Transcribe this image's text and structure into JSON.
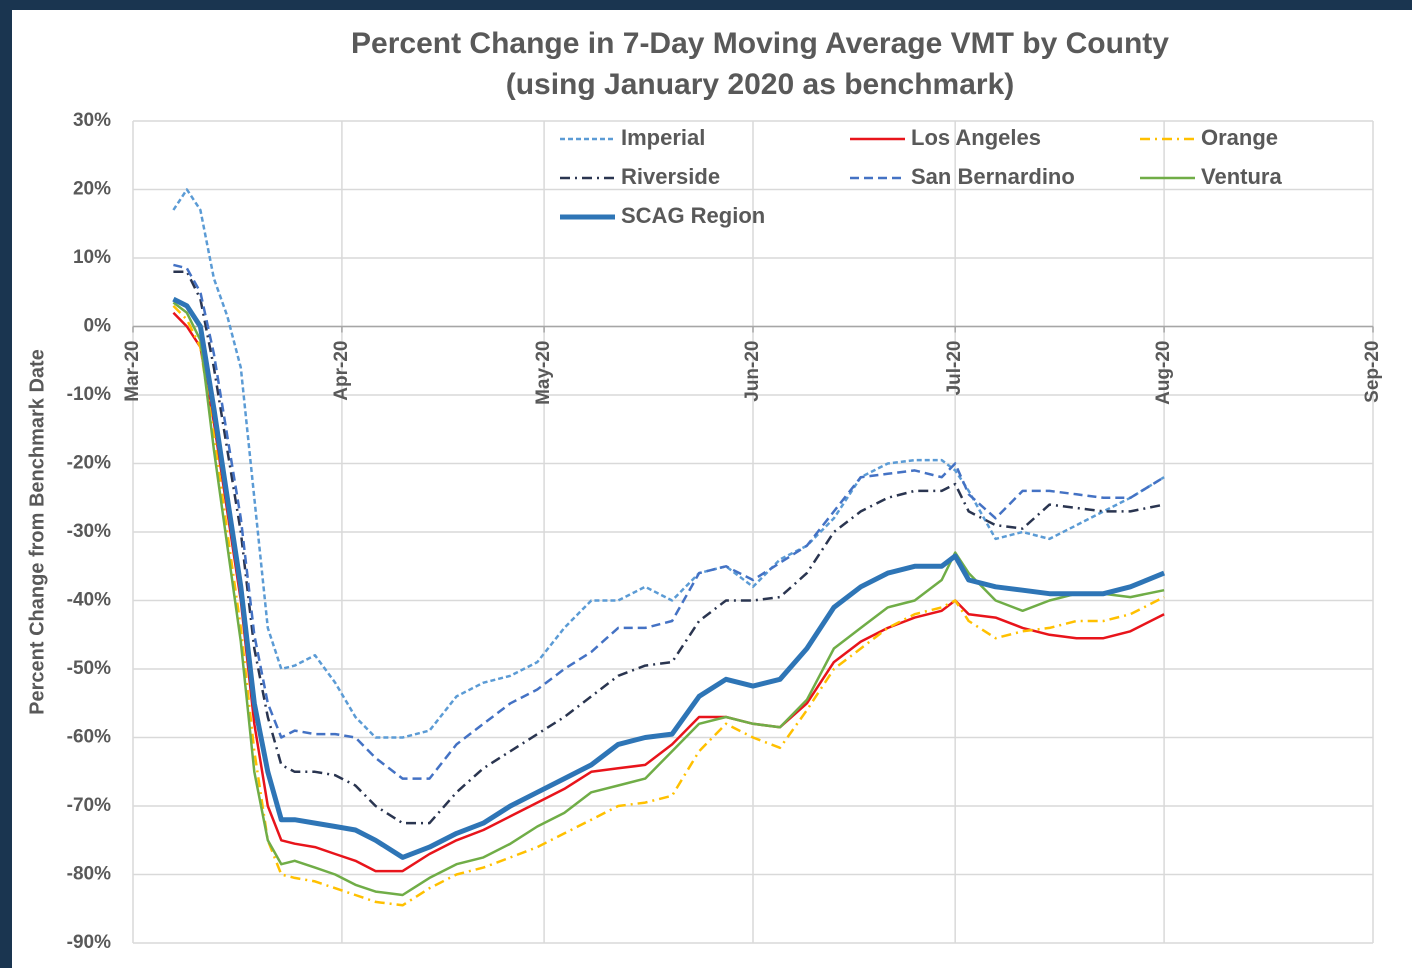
{
  "chart_data": {
    "type": "line",
    "title": "Percent Change in 7-Day Moving Average VMT by County",
    "subtitle": "(using January 2020 as benchmark)",
    "y_label": "Percent Change from Benchmark Date",
    "x": [
      6,
      8,
      10,
      12,
      14,
      16,
      18,
      20,
      22,
      24,
      27,
      30,
      33,
      36,
      40,
      44,
      48,
      52,
      56,
      60,
      64,
      68,
      72,
      76,
      80,
      84,
      88,
      92,
      96,
      100,
      104,
      108,
      112,
      116,
      120,
      122,
      124,
      128,
      132,
      136,
      140,
      144,
      148,
      153
    ],
    "xlim": [
      0,
      184
    ],
    "xticks": [
      {
        "value": 0,
        "label": "Mar-20"
      },
      {
        "value": 31,
        "label": "Apr-20"
      },
      {
        "value": 61,
        "label": "May-20"
      },
      {
        "value": 92,
        "label": "Jun-20"
      },
      {
        "value": 122,
        "label": "Jul-20"
      },
      {
        "value": 153,
        "label": "Aug-20"
      },
      {
        "value": 184,
        "label": "Sep-20"
      }
    ],
    "ylim": [
      -90,
      30
    ],
    "yticks": [
      {
        "value": 30,
        "label": "30%"
      },
      {
        "value": 20,
        "label": "20%"
      },
      {
        "value": 10,
        "label": "10%"
      },
      {
        "value": 0,
        "label": "0%"
      },
      {
        "value": -10,
        "label": "-10%"
      },
      {
        "value": -20,
        "label": "-20%"
      },
      {
        "value": -30,
        "label": "-30%"
      },
      {
        "value": -40,
        "label": "-40%"
      },
      {
        "value": -50,
        "label": "-50%"
      },
      {
        "value": -60,
        "label": "-60%"
      },
      {
        "value": -70,
        "label": "-70%"
      },
      {
        "value": -80,
        "label": "-80%"
      },
      {
        "value": -90,
        "label": "-90%"
      }
    ],
    "grid": true,
    "series": [
      {
        "name": "Imperial",
        "color": "#5b9bd5",
        "style": "dotted",
        "values": [
          17,
          20,
          17,
          7,
          1.5,
          -6,
          -25,
          -44,
          -50,
          -49.5,
          -48,
          -52,
          -57,
          -60,
          -60,
          -59,
          -54,
          -52,
          -51,
          -49,
          -44,
          -40,
          -40,
          -38,
          -40,
          -36,
          -35,
          -38,
          -34,
          -32,
          -28,
          -22,
          -20,
          -19.5,
          -19.5,
          -21,
          -24,
          -31,
          -30,
          -31,
          -29,
          -27,
          -25,
          -22
        ]
      },
      {
        "name": "Los Angeles",
        "color": "#e8141b",
        "style": "solid",
        "values": [
          2,
          0,
          -3,
          -14,
          -27,
          -40,
          -58,
          -70,
          -75,
          -75.5,
          -76,
          -77,
          -78,
          -79.5,
          -79.5,
          -77,
          -75,
          -73.5,
          -71.5,
          -69.5,
          -67.5,
          -65,
          -64.5,
          -64,
          -61,
          -57,
          -57,
          -58,
          -58.5,
          -55,
          -49,
          -46,
          -44,
          -42.5,
          -41.5,
          -40,
          -42,
          -42.5,
          -44,
          -45,
          -45.5,
          -45.5,
          -44.5,
          -42
        ]
      },
      {
        "name": "Orange",
        "color": "#ffc000",
        "style": "dashdot",
        "values": [
          3,
          1,
          -3,
          -16,
          -30,
          -44,
          -62,
          -75,
          -80,
          -80.5,
          -81,
          -82,
          -83,
          -84,
          -84.5,
          -82,
          -80,
          -79,
          -77.5,
          -76,
          -74,
          -72,
          -70,
          -69.5,
          -68.5,
          -62,
          -58,
          -60,
          -61.5,
          -56,
          -50,
          -47,
          -44,
          -42,
          -41,
          -40,
          -43,
          -45.5,
          -44.5,
          -44,
          -43,
          -43,
          -42,
          -39.5
        ]
      },
      {
        "name": "Riverside",
        "color": "#2a3550",
        "style": "dashdot",
        "values": [
          8,
          8,
          4,
          -6,
          -18,
          -30,
          -47,
          -57,
          -64,
          -65,
          -65,
          -65.5,
          -67,
          -70,
          -72.5,
          -72.5,
          -68,
          -64.5,
          -62,
          -59.5,
          -57,
          -54,
          -51,
          -49.5,
          -49,
          -43,
          -40,
          -40,
          -39.5,
          -36,
          -30,
          -27,
          -25,
          -24,
          -24,
          -23,
          -27,
          -29,
          -29.5,
          -26,
          -26.5,
          -27,
          -27,
          -26
        ]
      },
      {
        "name": "San Bernardino",
        "color": "#4472c4",
        "style": "dashed",
        "values": [
          9,
          8.5,
          5,
          -4,
          -16,
          -28,
          -45,
          -55,
          -60,
          -59,
          -59.5,
          -59.5,
          -60,
          -63,
          -66,
          -66,
          -61,
          -58,
          -55,
          -53,
          -50,
          -47.5,
          -44,
          -44,
          -43,
          -36,
          -35,
          -37,
          -34.5,
          -32,
          -27,
          -22,
          -21.5,
          -21,
          -22,
          -20,
          -24.5,
          -28,
          -24,
          -24,
          -24.5,
          -25,
          -25,
          -22
        ]
      },
      {
        "name": "Ventura",
        "color": "#70ad47",
        "style": "solid",
        "values": [
          3.5,
          2,
          -2,
          -18,
          -32,
          -46,
          -65,
          -75,
          -78.5,
          -78,
          -79,
          -80,
          -81.5,
          -82.5,
          -83,
          -80.5,
          -78.5,
          -77.5,
          -75.5,
          -73,
          -71,
          -68,
          -67,
          -66,
          -62,
          -58,
          -57,
          -58,
          -58.5,
          -54.5,
          -47,
          -44,
          -41,
          -40,
          -37,
          -33,
          -36,
          -40,
          -41.5,
          -40,
          -39,
          -39,
          -39.5,
          -38.5
        ]
      },
      {
        "name": "SCAG Region",
        "color": "#2e75b6",
        "style": "thick",
        "values": [
          4,
          3,
          0,
          -12,
          -25,
          -38,
          -55,
          -65,
          -72,
          -72,
          -72.5,
          -73,
          -73.5,
          -75,
          -77.5,
          -76,
          -74,
          -72.5,
          -70,
          -68,
          -66,
          -64,
          -61,
          -60,
          -59.5,
          -54,
          -51.5,
          -52.5,
          -51.5,
          -47,
          -41,
          -38,
          -36,
          -35,
          -35,
          -33.5,
          -37,
          -38,
          -38.5,
          -39,
          -39,
          -39,
          -38,
          -36
        ]
      }
    ]
  }
}
